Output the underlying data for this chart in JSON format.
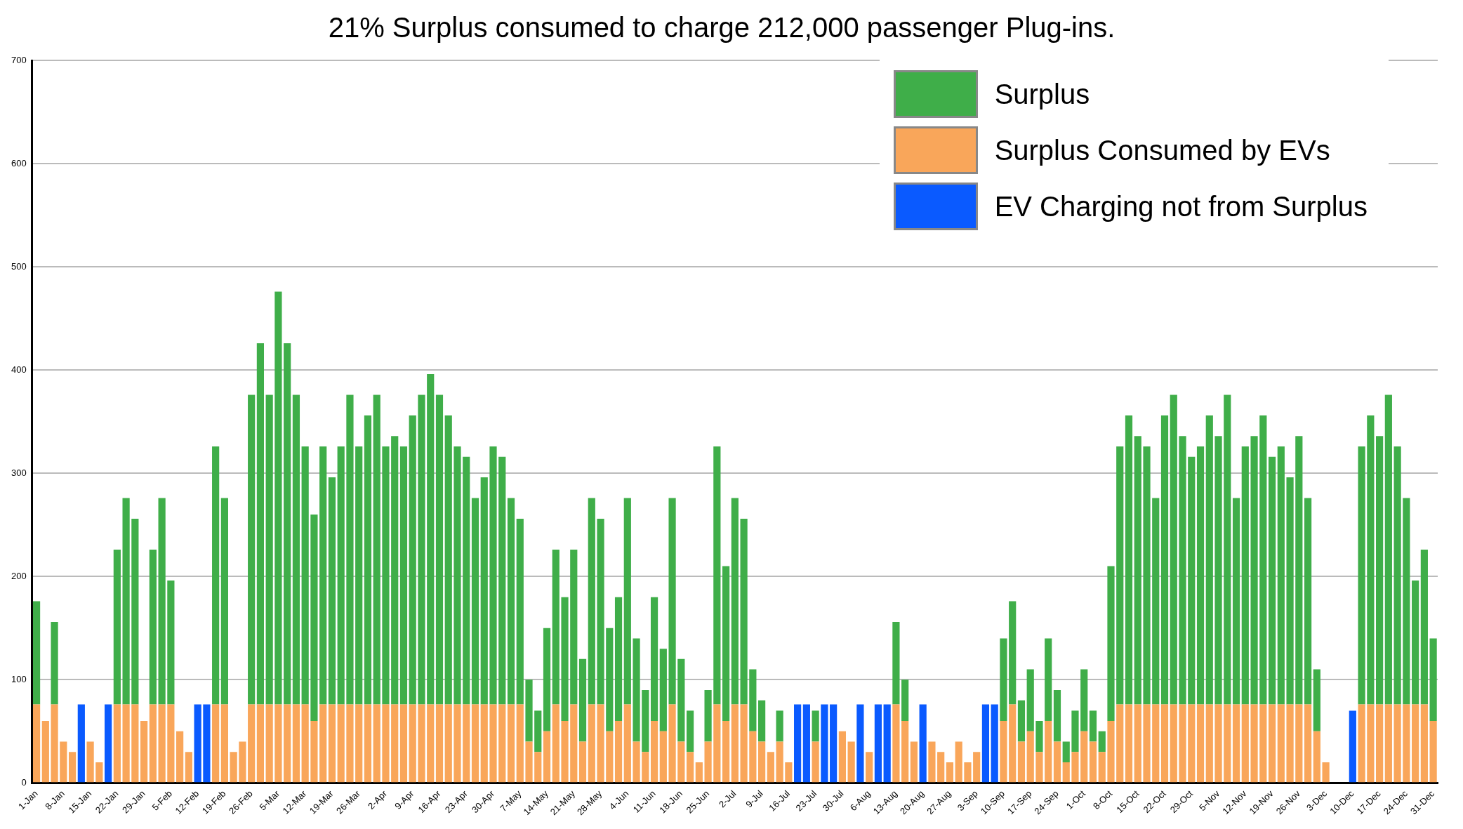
{
  "chart_data": {
    "type": "bar",
    "title": "21% Surplus consumed to charge 212,000 passenger Plug-ins.",
    "stacked": true,
    "grid": "y",
    "legend": "top right",
    "categories": [
      "1-Jan",
      null,
      null,
      "8-Jan",
      null,
      null,
      "15-Jan",
      null,
      null,
      "22-Jan",
      null,
      null,
      "29-Jan",
      null,
      null,
      "5-Feb",
      null,
      null,
      "12-Feb",
      null,
      null,
      "19-Feb",
      null,
      null,
      "26-Feb",
      null,
      null,
      "5-Mar",
      null,
      null,
      "12-Mar",
      null,
      null,
      "19-Mar",
      null,
      null,
      "26-Mar",
      null,
      null,
      "2-Apr",
      null,
      null,
      "9-Apr",
      null,
      null,
      "16-Apr",
      null,
      null,
      "23-Apr",
      null,
      null,
      "30-Apr",
      null,
      null,
      "7-May",
      null,
      null,
      "14-May",
      null,
      null,
      "21-May",
      null,
      null,
      "28-May",
      null,
      null,
      "4-Jun",
      null,
      null,
      "11-Jun",
      null,
      null,
      "18-Jun",
      null,
      null,
      "25-Jun",
      null,
      null,
      "2-Jul",
      null,
      null,
      "9-Jul",
      null,
      null,
      "16-Jul",
      null,
      null,
      "23-Jul",
      null,
      null,
      "30-Jul",
      null,
      null,
      "6-Aug",
      null,
      null,
      "13-Aug",
      null,
      null,
      "20-Aug",
      null,
      null,
      "27-Aug",
      null,
      null,
      "3-Sep",
      null,
      null,
      "10-Sep",
      null,
      null,
      "17-Sep",
      null,
      null,
      "24-Sep",
      null,
      null,
      "1-Oct",
      null,
      null,
      "8-Oct",
      null,
      null,
      "15-Oct",
      null,
      null,
      "22-Oct",
      null,
      null,
      "29-Oct",
      null,
      null,
      "5-Nov",
      null,
      null,
      "12-Nov",
      null,
      null,
      "19-Nov",
      null,
      null,
      "26-Nov",
      null,
      null,
      "3-Dec",
      null,
      null,
      "10-Dec",
      null,
      null,
      "17-Dec",
      null,
      null,
      "24-Dec",
      null,
      null,
      "31-Dec"
    ],
    "ylim": [
      0,
      700
    ],
    "yticks": [
      0,
      100,
      200,
      300,
      400,
      500,
      600,
      700
    ],
    "series": [
      {
        "name": "EV Charging not from Surplus",
        "color": "#0a5aff",
        "values": [
          0,
          0,
          0,
          0,
          0,
          76,
          0,
          0,
          76,
          0,
          0,
          0,
          0,
          0,
          0,
          0,
          0,
          0,
          76,
          76,
          0,
          0,
          0,
          0,
          0,
          0,
          0,
          0,
          0,
          0,
          0,
          0,
          0,
          0,
          0,
          0,
          0,
          0,
          0,
          0,
          0,
          0,
          0,
          0,
          0,
          0,
          0,
          0,
          0,
          0,
          0,
          0,
          0,
          0,
          0,
          0,
          0,
          0,
          0,
          0,
          0,
          0,
          0,
          0,
          0,
          0,
          0,
          0,
          0,
          0,
          0,
          0,
          0,
          0,
          0,
          0,
          0,
          0,
          0,
          0,
          0,
          0,
          0,
          0,
          0,
          76,
          76,
          0,
          76,
          76,
          0,
          0,
          76,
          0,
          76,
          76,
          0,
          0,
          0,
          76,
          0,
          0,
          0,
          0,
          0,
          0,
          76,
          76,
          0,
          0,
          0,
          0,
          0,
          0,
          0,
          0,
          0,
          0,
          0,
          0,
          0,
          0,
          0,
          0,
          0,
          0,
          0,
          0,
          0,
          0,
          0,
          0,
          0,
          0,
          0,
          0,
          0,
          0,
          0,
          0,
          0,
          0,
          0,
          0,
          0,
          0,
          0,
          70,
          0,
          0,
          0,
          0,
          0,
          0,
          0,
          0,
          0
        ]
      },
      {
        "name": "Surplus Consumed by EVs",
        "color": "#f9a65a",
        "values": [
          76,
          60,
          76,
          40,
          30,
          0,
          40,
          20,
          0,
          76,
          76,
          76,
          60,
          76,
          76,
          76,
          50,
          30,
          0,
          0,
          76,
          76,
          30,
          40,
          76,
          76,
          76,
          76,
          76,
          76,
          76,
          60,
          76,
          76,
          76,
          76,
          76,
          76,
          76,
          76,
          76,
          76,
          76,
          76,
          76,
          76,
          76,
          76,
          76,
          76,
          76,
          76,
          76,
          76,
          76,
          40,
          30,
          50,
          76,
          60,
          76,
          40,
          76,
          76,
          50,
          60,
          76,
          40,
          30,
          60,
          50,
          76,
          40,
          30,
          20,
          40,
          76,
          60,
          76,
          76,
          50,
          40,
          30,
          40,
          20,
          0,
          0,
          40,
          0,
          0,
          50,
          40,
          0,
          30,
          0,
          0,
          76,
          60,
          40,
          0,
          40,
          30,
          20,
          40,
          20,
          30,
          0,
          0,
          60,
          76,
          40,
          50,
          30,
          60,
          40,
          20,
          30,
          50,
          40,
          30,
          60,
          76,
          76,
          76,
          76,
          76,
          76,
          76,
          76,
          76,
          76,
          76,
          76,
          76,
          76,
          76,
          76,
          76,
          76,
          76,
          76,
          76,
          76,
          50,
          20,
          0,
          0,
          0,
          76,
          76,
          76,
          76,
          76,
          76,
          76,
          76,
          60
        ]
      },
      {
        "name": "Surplus",
        "color": "#3fae49",
        "values": [
          100,
          0,
          80,
          0,
          0,
          0,
          0,
          0,
          0,
          150,
          200,
          180,
          0,
          150,
          200,
          120,
          0,
          0,
          0,
          0,
          250,
          200,
          0,
          0,
          300,
          350,
          300,
          400,
          350,
          300,
          250,
          200,
          250,
          220,
          250,
          300,
          250,
          280,
          300,
          250,
          260,
          250,
          280,
          300,
          320,
          300,
          280,
          250,
          240,
          200,
          220,
          250,
          240,
          200,
          180,
          60,
          40,
          100,
          150,
          120,
          150,
          80,
          200,
          180,
          100,
          120,
          200,
          100,
          60,
          120,
          80,
          200,
          80,
          40,
          0,
          50,
          250,
          150,
          200,
          180,
          60,
          40,
          0,
          30,
          0,
          0,
          0,
          30,
          0,
          0,
          0,
          0,
          0,
          0,
          0,
          0,
          80,
          40,
          0,
          0,
          0,
          0,
          0,
          0,
          0,
          0,
          0,
          0,
          80,
          100,
          40,
          60,
          30,
          80,
          50,
          20,
          40,
          60,
          30,
          20,
          150,
          250,
          280,
          260,
          250,
          200,
          280,
          300,
          260,
          240,
          250,
          280,
          260,
          300,
          200,
          250,
          260,
          280,
          240,
          250,
          220,
          260,
          200,
          60,
          0,
          0,
          0,
          0,
          250,
          280,
          260,
          300,
          250,
          200,
          120,
          150,
          80
        ]
      }
    ]
  }
}
